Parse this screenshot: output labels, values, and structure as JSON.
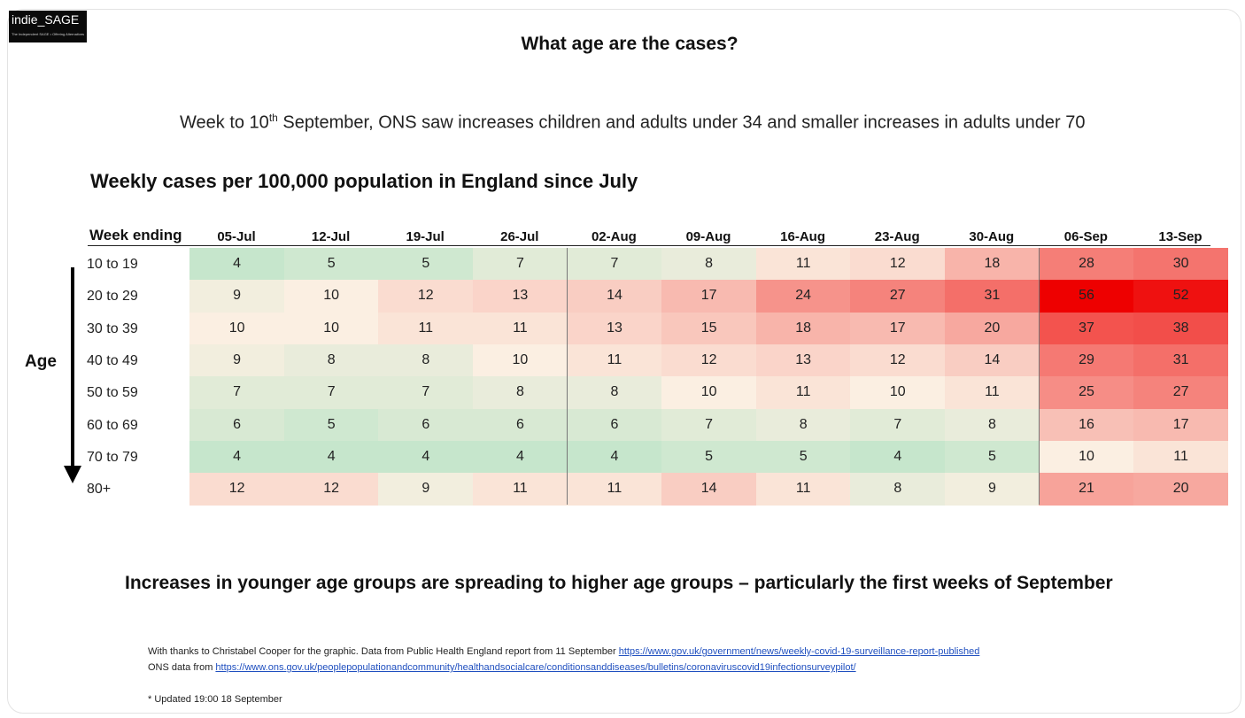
{
  "logo": {
    "text": "indie_SAGE",
    "subtext": "The Independent SAGE • Offering Alternatives"
  },
  "title": "What age are the cases?",
  "subtitle": {
    "pre": "Week to 10",
    "sup": "th",
    "post": " September, ONS saw increases children and adults under 34 and smaller increases in adults under 70"
  },
  "table_title": "Weekly cases per 100,000 population in England since July",
  "week_ending_label": "Week ending",
  "age_label": "Age",
  "conclusion": "Increases in younger age groups are spreading to higher age groups – particularly the first weeks of September",
  "footnotes": {
    "line1_text": "With thanks to Christabel Cooper for the graphic. Data from Public Health England report from 11 September ",
    "line1_link": "https://www.gov.uk/government/news/weekly-covid-19-surveillance-report-published",
    "line2_text": "ONS data from ",
    "line2_link": "https://www.ons.gov.uk/peoplepopulationandcommunity/healthandsocialcare/conditionsanddiseases/bulletins/coronaviruscovid19infectionsurveypilot/",
    "updated": "* Updated 19:00 18 September"
  },
  "chart_data": {
    "type": "heatmap",
    "title": "Weekly cases per 100,000 population in England since July",
    "xlabel": "Week ending",
    "ylabel": "Age",
    "columns": [
      "05-Jul",
      "12-Jul",
      "19-Jul",
      "26-Jul",
      "02-Aug",
      "09-Aug",
      "16-Aug",
      "23-Aug",
      "30-Aug",
      "06-Sep",
      "13-Sep"
    ],
    "rows": [
      "10 to 19",
      "20 to 29",
      "30 to 39",
      "40 to 49",
      "50 to 59",
      "60 to 69",
      "70 to 79",
      "80+"
    ],
    "values": [
      [
        4,
        5,
        5,
        7,
        7,
        8,
        11,
        12,
        18,
        28,
        30
      ],
      [
        9,
        10,
        12,
        13,
        14,
        17,
        24,
        27,
        31,
        56,
        52
      ],
      [
        10,
        10,
        11,
        11,
        13,
        15,
        18,
        17,
        20,
        37,
        38
      ],
      [
        9,
        8,
        8,
        10,
        11,
        12,
        13,
        12,
        14,
        29,
        31
      ],
      [
        7,
        7,
        7,
        8,
        8,
        10,
        11,
        10,
        11,
        25,
        27
      ],
      [
        6,
        5,
        6,
        6,
        6,
        7,
        8,
        7,
        8,
        16,
        17
      ],
      [
        4,
        4,
        4,
        4,
        4,
        5,
        5,
        4,
        5,
        10,
        11
      ],
      [
        12,
        12,
        9,
        11,
        11,
        14,
        11,
        8,
        9,
        21,
        20
      ]
    ],
    "colors": {
      "low": "#c6e6cc",
      "mid": "#fbefe2",
      "high": "#ee0000"
    }
  }
}
